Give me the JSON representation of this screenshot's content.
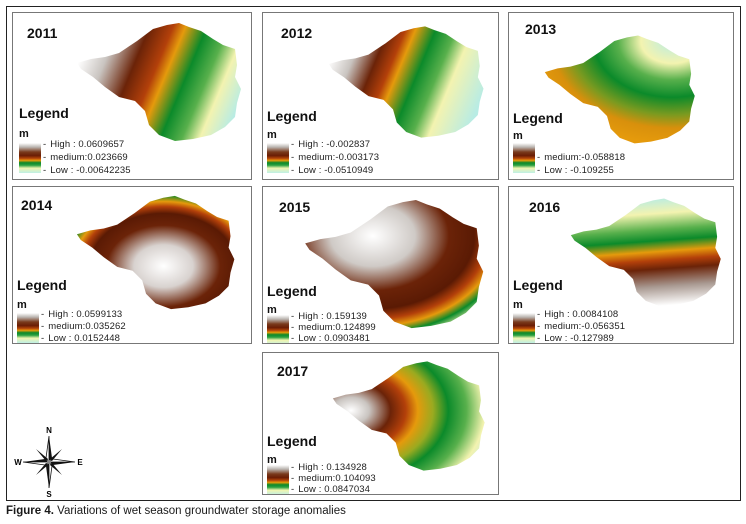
{
  "figure": {
    "caption_label": "Figure 4.",
    "caption_text": "Variations of wet season groundwater storage anomalies"
  },
  "compass": {
    "north": "N",
    "south": "S",
    "east": "E",
    "west": "W"
  },
  "legend": {
    "title": "Legend",
    "unit": "m"
  },
  "panels": [
    {
      "year": "2011",
      "high": "High : 0.0609657",
      "medium": "medium:0.023669",
      "low": "Low : -0.00642235",
      "pattern": "west-high-bands"
    },
    {
      "year": "2012",
      "high": "High : -0.002837",
      "medium": "medium:-0.003173",
      "low": "Low : -0.0510949",
      "pattern": "west-high-bands-narrow"
    },
    {
      "year": "2013",
      "high": "",
      "medium": "medium:-0.058818",
      "low": "Low : -0.109255",
      "pattern": "southwest-orange-northeast-low"
    },
    {
      "year": "2014",
      "high": "High : 0.0599133",
      "medium": "medium:0.035262",
      "low": "Low : 0.0152448",
      "pattern": "high-centre-low-north"
    },
    {
      "year": "2015",
      "high": "High : 0.159139",
      "medium": "medium:0.124899",
      "low": "Low : 0.0903481",
      "pattern": "high-centre-low-south"
    },
    {
      "year": "2016",
      "high": "High : 0.0084108",
      "medium": "medium:-0.056351",
      "low": "Low : -0.127989",
      "pattern": "high-south-low-north"
    },
    {
      "year": "2017",
      "high": "High : 0.134928",
      "medium": "medium:0.104093",
      "low": "Low : 0.0847034",
      "pattern": "high-west-low-east"
    }
  ]
}
